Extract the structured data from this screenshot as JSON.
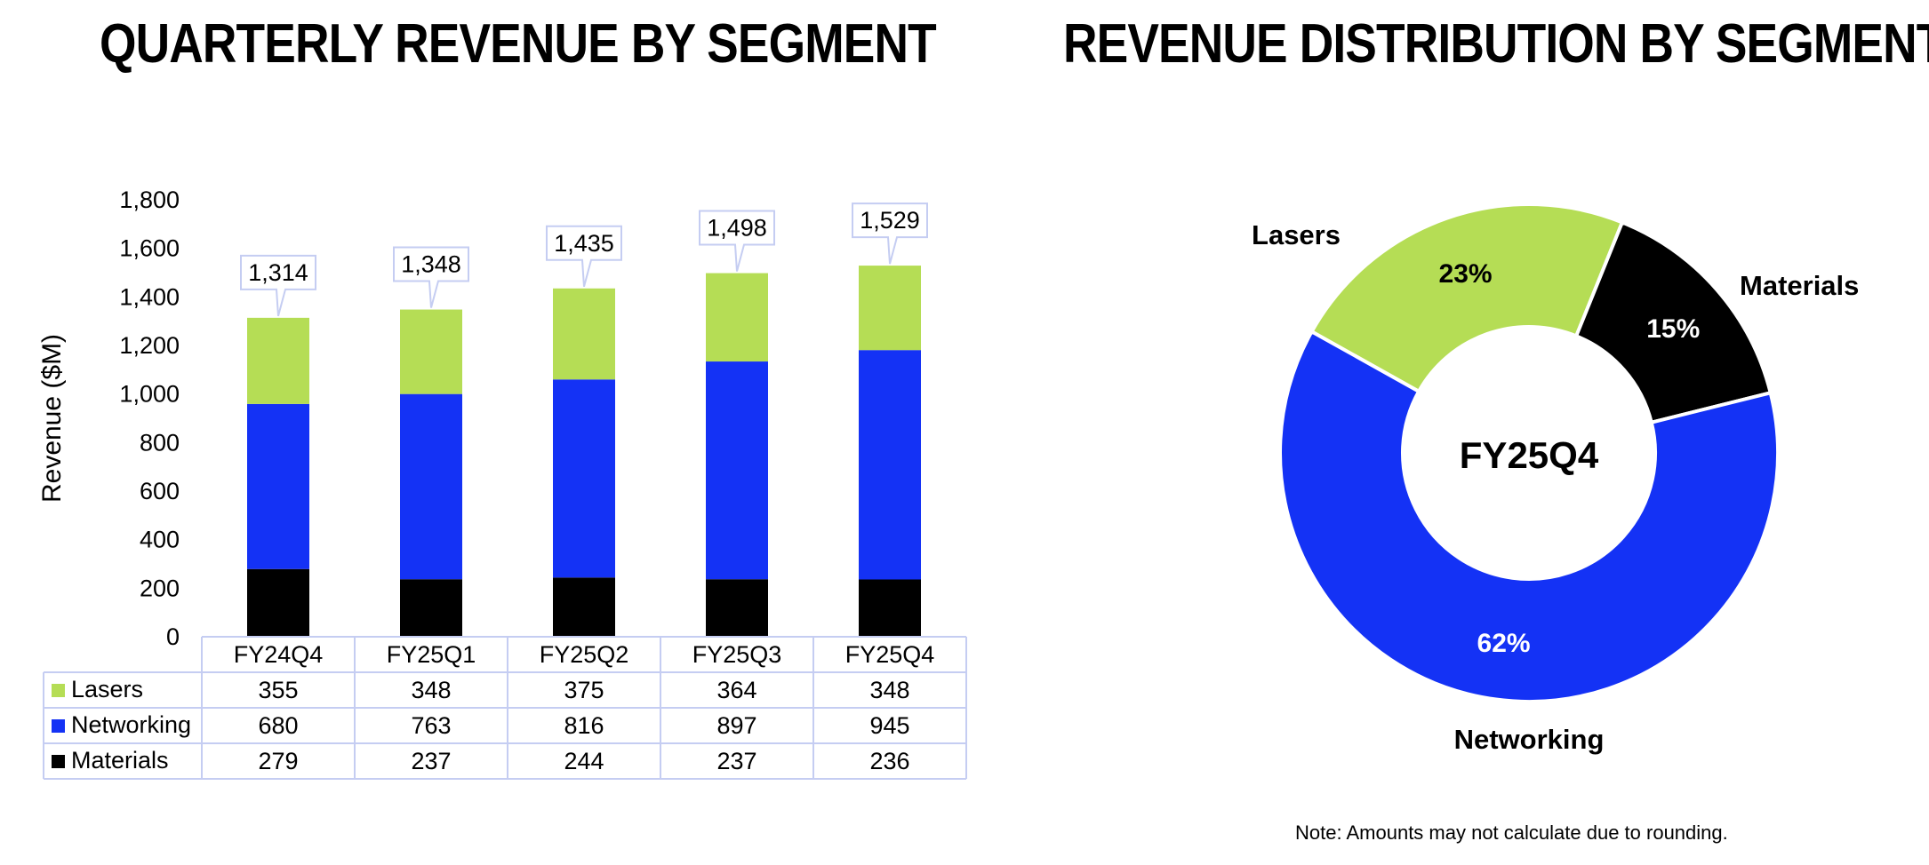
{
  "left_title": "QUARTERLY REVENUE BY SEGMENT",
  "right_title": "REVENUE DISTRIBUTION BY SEGMENT",
  "note": "Note: Amounts may not calculate due to rounding.",
  "colors": {
    "lasers": "#b5dd55",
    "networking": "#1432f5",
    "materials": "#000000",
    "table_border": "#c5cdf2"
  },
  "chart_data": [
    {
      "type": "bar",
      "stacked": true,
      "title": "QUARTERLY REVENUE BY SEGMENT",
      "ylabel": "Revenue ($M)",
      "xlabel": "",
      "ylim": [
        0,
        1800
      ],
      "yticks": [
        "1,800",
        "1,600",
        "1,400",
        "1,200",
        "1,000",
        "800",
        "600",
        "400",
        "200",
        "0"
      ],
      "categories": [
        "FY24Q4",
        "FY25Q1",
        "FY25Q2",
        "FY25Q3",
        "FY25Q4"
      ],
      "totals": [
        "1,314",
        "1,348",
        "1,435",
        "1,498",
        "1,529"
      ],
      "series": [
        {
          "name": "Materials",
          "values": [
            279,
            237,
            244,
            237,
            236
          ]
        },
        {
          "name": "Networking",
          "values": [
            680,
            763,
            816,
            897,
            945
          ]
        },
        {
          "name": "Lasers",
          "values": [
            355,
            348,
            375,
            364,
            348
          ]
        }
      ],
      "table_rows": [
        {
          "name": "Lasers",
          "values": [
            "355",
            "348",
            "375",
            "364",
            "348"
          ]
        },
        {
          "name": "Networking",
          "values": [
            "680",
            "763",
            "816",
            "897",
            "945"
          ]
        },
        {
          "name": "Materials",
          "values": [
            "279",
            "237",
            "244",
            "237",
            "236"
          ]
        }
      ]
    },
    {
      "type": "pie",
      "donut": true,
      "title": "REVENUE DISTRIBUTION BY SEGMENT",
      "center_label": "FY25Q4",
      "slices": [
        {
          "name": "Lasers",
          "value": 23,
          "label": "23%"
        },
        {
          "name": "Materials",
          "value": 15,
          "label": "15%"
        },
        {
          "name": "Networking",
          "value": 62,
          "label": "62%"
        }
      ]
    }
  ]
}
